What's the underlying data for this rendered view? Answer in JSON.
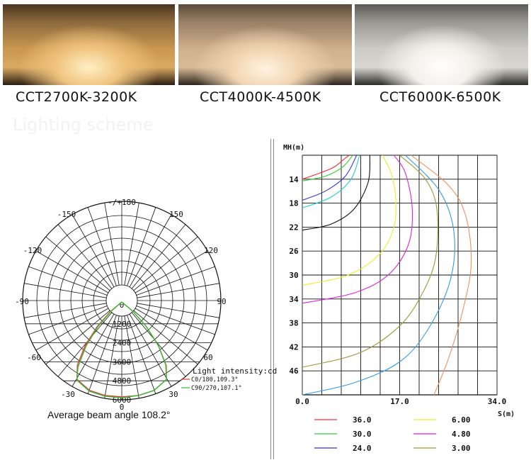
{
  "swatches": [
    {
      "label": "CCT2700K-3200K"
    },
    {
      "label": "CCT4000K-4500K"
    },
    {
      "label": "CCT6000K-6500K"
    }
  ],
  "ghost_heading": "Lighting scheme",
  "footer_caption": "Average beam angle 108.2°",
  "chart_data": [
    {
      "type": "polar",
      "angle_labels": [
        "-/+180",
        "-150",
        "150",
        "-120",
        "120",
        "-90",
        "90",
        "-60",
        "60",
        "-30",
        "30",
        "0"
      ],
      "radial_ticks": [
        "0",
        "1200",
        "2400",
        "3600",
        "4800",
        "6000"
      ],
      "rmax": 6000,
      "legend_title": "Light intensity:cd",
      "series": [
        {
          "name": "C0/180,109.3°",
          "color": "#ee3333",
          "points": [
            [
              -54,
              0
            ],
            [
              -50,
              900
            ],
            [
              -45,
              2200
            ],
            [
              -40,
              3600
            ],
            [
              -35,
              4900
            ],
            [
              -30,
              5650
            ],
            [
              -20,
              5950
            ],
            [
              -10,
              6000
            ],
            [
              0,
              6000
            ],
            [
              10,
              6000
            ],
            [
              20,
              5950
            ],
            [
              30,
              5650
            ],
            [
              35,
              4900
            ],
            [
              40,
              3600
            ],
            [
              45,
              2200
            ],
            [
              50,
              900
            ],
            [
              54,
              0
            ]
          ]
        },
        {
          "name": "C90/270,107.1°",
          "color": "#33bb33",
          "points": [
            [
              -53,
              0
            ],
            [
              -49,
              900
            ],
            [
              -44,
              2200
            ],
            [
              -39,
              3600
            ],
            [
              -34,
              4950
            ],
            [
              -30,
              5700
            ],
            [
              -20,
              6000
            ],
            [
              -10,
              6050
            ],
            [
              0,
              6050
            ],
            [
              10,
              6000
            ],
            [
              20,
              5950
            ],
            [
              30,
              5650
            ],
            [
              35,
              4850
            ],
            [
              40,
              3600
            ],
            [
              45,
              2200
            ],
            [
              50,
              900
            ],
            [
              54,
              0
            ]
          ]
        }
      ]
    },
    {
      "type": "isolux",
      "xlabel": "S(m)",
      "ylabel": "MH(m)",
      "xticks": [
        "0.0",
        "17.0",
        "34.0"
      ],
      "yticks": [
        "14",
        "18",
        "22",
        "26",
        "30",
        "34",
        "38",
        "42",
        "46"
      ],
      "xlim": [
        0,
        34
      ],
      "ylim": [
        10,
        50
      ],
      "series": [
        {
          "name": "36.0",
          "color": "#ee3333",
          "points": [
            [
              0,
              14
            ],
            [
              3,
              13
            ],
            [
              5.5,
              12
            ],
            [
              7.5,
              10.5
            ],
            [
              8.2,
              10
            ]
          ]
        },
        {
          "name": "30.0",
          "color": "#33cc33",
          "points": [
            [
              0,
              14.3
            ],
            [
              4,
              13.5
            ],
            [
              7,
              12
            ],
            [
              8.8,
              10
            ]
          ]
        },
        {
          "name": "24.0",
          "color": "#3333cc",
          "points": [
            [
              0,
              17.5
            ],
            [
              4,
              16
            ],
            [
              7.5,
              13.5
            ],
            [
              9.5,
              10
            ]
          ]
        },
        {
          "name": "6.00",
          "color": "#eeee22",
          "points": [
            [
              0,
              31.7
            ],
            [
              8,
              30
            ],
            [
              13.5,
              26.5
            ],
            [
              16,
              22
            ],
            [
              16.3,
              17
            ],
            [
              15.5,
              13
            ],
            [
              14,
              10
            ]
          ]
        },
        {
          "name": "4.80",
          "color": "#dd22dd",
          "points": [
            [
              0,
              34.7
            ],
            [
              9,
              33
            ],
            [
              15,
              30
            ],
            [
              18.5,
              25
            ],
            [
              19.2,
              19
            ],
            [
              18,
              13
            ],
            [
              16,
              10
            ]
          ]
        },
        {
          "name": "3.00",
          "color": "#999933",
          "points": [
            [
              0,
              45.4
            ],
            [
              10,
              43
            ],
            [
              17,
              38.5
            ],
            [
              21,
              33
            ],
            [
              23.3,
              27
            ],
            [
              23.5,
              19
            ],
            [
              21.5,
              14
            ],
            [
              17,
              10
            ]
          ]
        },
        {
          "name": "",
          "color": "#22cccc",
          "points": [
            [
              0,
              18.8
            ],
            [
              5,
              17
            ],
            [
              8.5,
              14
            ],
            [
              10,
              10
            ]
          ]
        },
        {
          "name": "",
          "color": "#111111",
          "points": [
            [
              0,
              22.5
            ],
            [
              5,
              21.5
            ],
            [
              9,
              19
            ],
            [
              11.5,
              14.5
            ],
            [
              11.8,
              10
            ]
          ]
        },
        {
          "name": "",
          "color": "#3399ee",
          "points": [
            [
              0,
              50
            ],
            [
              9,
              48
            ],
            [
              17,
              44.5
            ],
            [
              22,
              39
            ],
            [
              25.8,
              31
            ],
            [
              26.5,
              23
            ],
            [
              24,
              16
            ],
            [
              18,
              10
            ]
          ]
        },
        {
          "name": "",
          "color": "#f09060",
          "points": [
            [
              23,
              50
            ],
            [
              25.5,
              44
            ],
            [
              28,
              36
            ],
            [
              29.5,
              28
            ],
            [
              28.5,
              20
            ],
            [
              25.5,
              15
            ],
            [
              19,
              10
            ]
          ]
        }
      ]
    }
  ]
}
